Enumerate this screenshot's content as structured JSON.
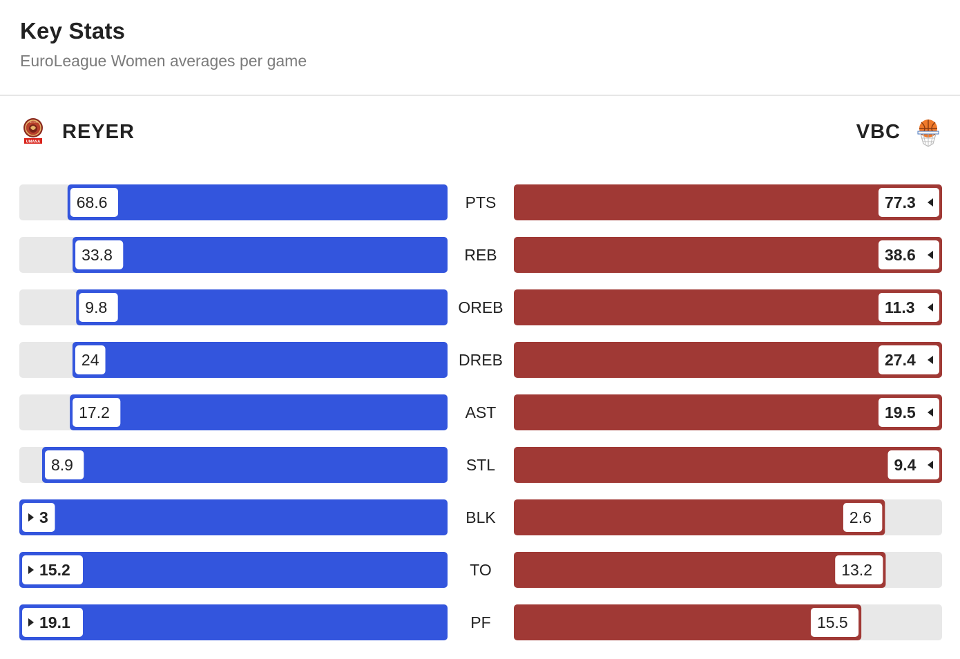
{
  "header": {
    "title": "Key Stats",
    "subtitle": "EuroLeague Women averages per game"
  },
  "teams": {
    "left": {
      "name": "REYER",
      "color": "#3355dd",
      "logo_icon": "reyer-logo-icon",
      "logo_text": "REYER",
      "logo_badge_text": "UMANA"
    },
    "right": {
      "name": "VBC",
      "color": "#a03935",
      "logo_icon": "vbc-basketball-logo-icon"
    }
  },
  "chart_data": {
    "type": "bar",
    "title": "Key Stats",
    "subtitle": "EuroLeague Women averages per game",
    "layout": "mirrored-horizontal-bar",
    "categories": [
      "PTS",
      "REB",
      "OREB",
      "DREB",
      "AST",
      "STL",
      "BLK",
      "TO",
      "PF"
    ],
    "series": [
      {
        "name": "REYER",
        "color": "#3355dd",
        "values": [
          68.6,
          33.8,
          9.8,
          24,
          17.2,
          8.9,
          3,
          15.2,
          19.1
        ],
        "labels": [
          "68.6",
          "33.8",
          "9.8",
          "24",
          "17.2",
          "8.9",
          "3",
          "15.2",
          "19.1"
        ]
      },
      {
        "name": "VBC",
        "color": "#a03935",
        "values": [
          77.3,
          38.6,
          11.3,
          27.4,
          19.5,
          9.4,
          2.6,
          13.2,
          15.5
        ],
        "labels": [
          "77.3",
          "38.6",
          "11.3",
          "27.4",
          "19.5",
          "9.4",
          "2.6",
          "13.2",
          "15.5"
        ]
      }
    ],
    "scale": "each row scaled to the larger of the two values",
    "track_color": "#e8e8e8",
    "leader_marker": "triangle pointing to the leading team's bar"
  }
}
